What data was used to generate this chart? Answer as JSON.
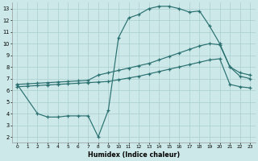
{
  "background_color": "#cce8e8",
  "grid_color": "#aacece",
  "line_color": "#2a7070",
  "xlabel": "Humidex (Indice chaleur)",
  "xlim": [
    -0.5,
    23.5
  ],
  "ylim": [
    1.5,
    13.5
  ],
  "xticks": [
    0,
    1,
    2,
    3,
    4,
    5,
    6,
    7,
    8,
    9,
    10,
    11,
    12,
    13,
    14,
    15,
    16,
    17,
    18,
    19,
    20,
    21,
    22,
    23
  ],
  "yticks": [
    2,
    3,
    4,
    5,
    6,
    7,
    8,
    9,
    10,
    11,
    12,
    13
  ],
  "line_upper_x": [
    0,
    2,
    3,
    4,
    5,
    6,
    7,
    8,
    9,
    10,
    11,
    12,
    13,
    14,
    15,
    16,
    17,
    18,
    19,
    20,
    21,
    22,
    23
  ],
  "line_upper_y": [
    6.5,
    4.0,
    3.7,
    3.7,
    3.8,
    3.8,
    3.8,
    2.0,
    4.3,
    10.5,
    12.2,
    12.5,
    13.0,
    13.2,
    13.2,
    13.0,
    12.7,
    12.8,
    11.5,
    10.0,
    8.0,
    7.2,
    7.0
  ],
  "line_mid_x": [
    0,
    1,
    2,
    3,
    4,
    5,
    6,
    7,
    8,
    9,
    10,
    11,
    12,
    13,
    14,
    15,
    16,
    17,
    18,
    19,
    20,
    21,
    22,
    23
  ],
  "line_mid_y": [
    6.5,
    6.55,
    6.6,
    6.65,
    6.7,
    6.75,
    6.8,
    6.85,
    7.3,
    7.5,
    7.7,
    7.9,
    8.1,
    8.3,
    8.6,
    8.9,
    9.2,
    9.5,
    9.8,
    10.0,
    9.9,
    8.0,
    7.5,
    7.3
  ],
  "line_lower_x": [
    0,
    1,
    2,
    3,
    4,
    5,
    6,
    7,
    8,
    9,
    10,
    11,
    12,
    13,
    14,
    15,
    16,
    17,
    18,
    19,
    20,
    21,
    22,
    23
  ],
  "line_lower_y": [
    6.3,
    6.35,
    6.4,
    6.45,
    6.5,
    6.55,
    6.6,
    6.65,
    6.7,
    6.75,
    6.9,
    7.05,
    7.2,
    7.4,
    7.6,
    7.8,
    8.0,
    8.2,
    8.4,
    8.6,
    8.7,
    6.5,
    6.3,
    6.2
  ]
}
